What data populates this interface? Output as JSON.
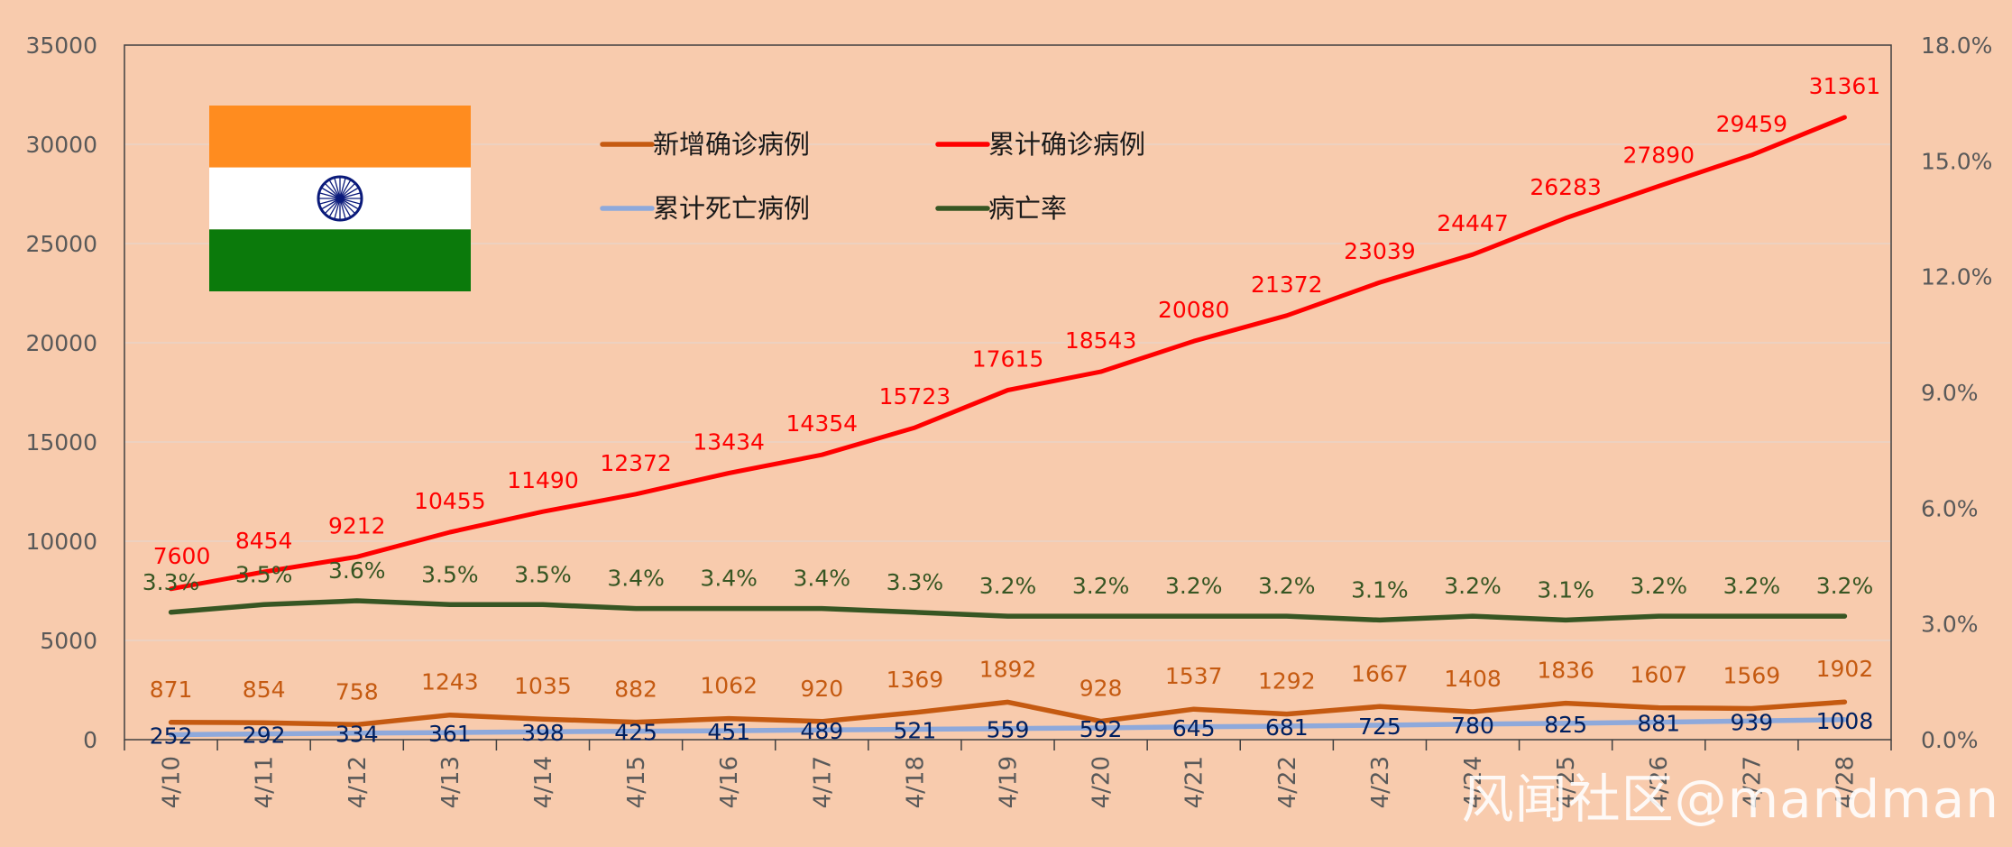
{
  "chart_data": {
    "type": "line",
    "categories": [
      "4/10",
      "4/11",
      "4/12",
      "4/13",
      "4/14",
      "4/15",
      "4/16",
      "4/17",
      "4/18",
      "4/19",
      "4/20",
      "4/21",
      "4/22",
      "4/23",
      "4/24",
      "4/25",
      "4/26",
      "4/27",
      "4/28"
    ],
    "series": [
      {
        "name": "新增确诊病例",
        "axis": "left",
        "color": "#C55A11",
        "values": [
          871,
          854,
          758,
          1243,
          1035,
          882,
          1062,
          920,
          1369,
          1892,
          928,
          1537,
          1292,
          1667,
          1408,
          1836,
          1607,
          1569,
          1902
        ]
      },
      {
        "name": "累计确诊病例",
        "axis": "left",
        "color": "#FF0000",
        "values": [
          7600,
          8454,
          9212,
          10455,
          11490,
          12372,
          13434,
          14354,
          15723,
          17615,
          18543,
          20080,
          21372,
          23039,
          24447,
          26283,
          27890,
          29459,
          31361
        ]
      },
      {
        "name": "累计死亡病例",
        "axis": "left",
        "color": "#8EA9DB",
        "label_color": "#002060",
        "values": [
          252,
          292,
          334,
          361,
          398,
          425,
          451,
          489,
          521,
          559,
          592,
          645,
          681,
          725,
          780,
          825,
          881,
          939,
          1008
        ]
      },
      {
        "name": "病亡率",
        "axis": "right",
        "color": "#375623",
        "values": [
          3.3,
          3.5,
          3.6,
          3.5,
          3.5,
          3.4,
          3.4,
          3.4,
          3.3,
          3.2,
          3.2,
          3.2,
          3.2,
          3.1,
          3.2,
          3.1,
          3.2,
          3.2,
          3.2
        ]
      }
    ],
    "y_left": {
      "min": 0,
      "max": 35000,
      "ticks": [
        "0",
        "5000",
        "10000",
        "15000",
        "20000",
        "25000",
        "30000",
        "35000"
      ]
    },
    "y_right": {
      "min": 0,
      "max": 18,
      "ticks": [
        "0.0%",
        "3.0%",
        "6.0%",
        "9.0%",
        "12.0%",
        "15.0%",
        "18.0%"
      ]
    },
    "grid": true,
    "legend_position": "top-center",
    "title": "",
    "xlabel": "",
    "ylabel": ""
  },
  "flag": {
    "name": "India",
    "colors": {
      "saffron": "#FF8C1F",
      "white": "#FFFFFF",
      "green": "#0B7A0B",
      "chakra": "#0A1A7A"
    }
  },
  "watermark": "风闻社区@mandman",
  "colors": {
    "background": "#F8CBAD",
    "axis_text": "#595959",
    "grid": "#E9D3C6"
  }
}
